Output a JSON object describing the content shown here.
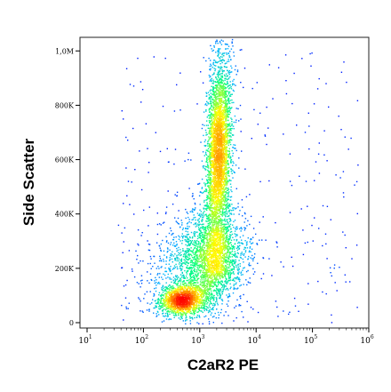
{
  "chart_data": {
    "type": "scatter",
    "title": "",
    "xlabel": "C2aR2 PE",
    "ylabel": "Side Scatter",
    "x_scale": "log",
    "y_scale": "linear",
    "xlim": [
      10,
      1000000
    ],
    "ylim": [
      0,
      1050000
    ],
    "x_ticks": [
      {
        "value": 10,
        "base": "10",
        "exp": "1"
      },
      {
        "value": 100,
        "base": "10",
        "exp": "2"
      },
      {
        "value": 1000,
        "base": "10",
        "exp": "3"
      },
      {
        "value": 10000,
        "base": "10",
        "exp": "4"
      },
      {
        "value": 100000,
        "base": "10",
        "exp": "5"
      },
      {
        "value": 1000000,
        "base": "10",
        "exp": "6"
      }
    ],
    "y_ticks": [
      {
        "value": 0,
        "label": "0"
      },
      {
        "value": 200000,
        "label": "200K"
      },
      {
        "value": 400000,
        "label": "400K"
      },
      {
        "value": 600000,
        "label": "600K"
      },
      {
        "value": 800000,
        "label": "800K"
      },
      {
        "value": 1000000,
        "label": "1,0M"
      }
    ],
    "grid": false,
    "legend": "none",
    "density_colormap": [
      "#0000ff",
      "#00b4ff",
      "#00ff80",
      "#ffff00",
      "#ff8000",
      "#ff0000"
    ],
    "populations": [
      {
        "x_center": 480,
        "y_center": 85000,
        "x_spread_decades": 0.2,
        "y_spread": 26000,
        "count": 1500
      },
      {
        "x_center": 2100,
        "y_center": 620000,
        "x_spread_decades": 0.11,
        "y_spread": 190000,
        "count": 3600
      },
      {
        "x_center": 1200,
        "y_center": 220000,
        "x_spread_decades": 0.3,
        "y_spread": 90000,
        "count": 1600
      },
      {
        "x_center": 2600,
        "y_center": 250000,
        "x_spread_decades": 0.25,
        "y_spread": 70000,
        "count": 700
      },
      {
        "x_center": 300,
        "y_center": 190000,
        "x_spread_decades": 0.35,
        "y_spread": 110000,
        "count": 280
      }
    ]
  }
}
